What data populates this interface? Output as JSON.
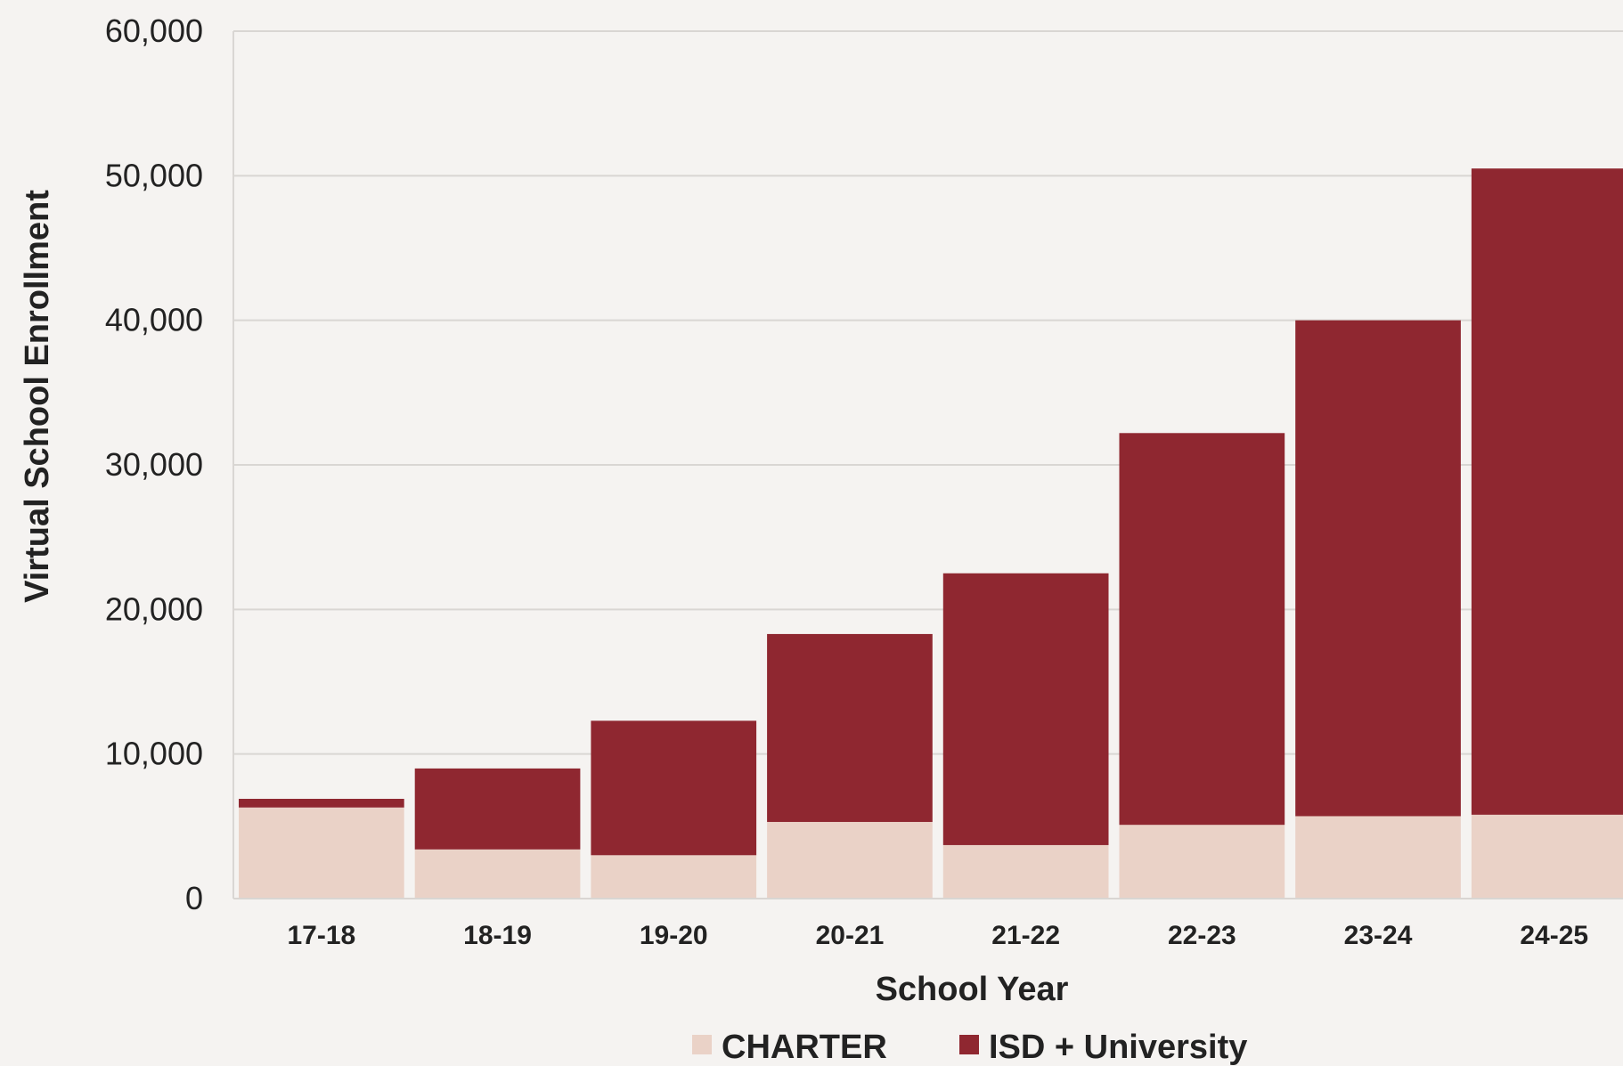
{
  "chart_data": {
    "type": "bar",
    "stacked": true,
    "categories": [
      "17-18",
      "18-19",
      "19-20",
      "20-21",
      "21-22",
      "22-23",
      "23-24",
      "24-25"
    ],
    "series": [
      {
        "name": "CHARTER",
        "color": "#ead2c7",
        "values": [
          6300,
          3400,
          3000,
          5300,
          3700,
          5100,
          5700,
          5800
        ]
      },
      {
        "name": "ISD + University",
        "color": "#8f2730",
        "values": [
          600,
          5600,
          9300,
          13000,
          18800,
          27100,
          34300,
          44700
        ]
      }
    ],
    "xlabel": "School Year",
    "ylabel": "Virtual School Enrollment",
    "ylim": [
      0,
      60000
    ],
    "yticks": [
      0,
      10000,
      20000,
      30000,
      40000,
      50000,
      60000
    ],
    "ytick_labels": [
      "0",
      "10,000",
      "20,000",
      "30,000",
      "40,000",
      "50,000",
      "60,000"
    ],
    "grid": true,
    "gridline_color": "#d9d6d3",
    "legend_position": "bottom"
  }
}
